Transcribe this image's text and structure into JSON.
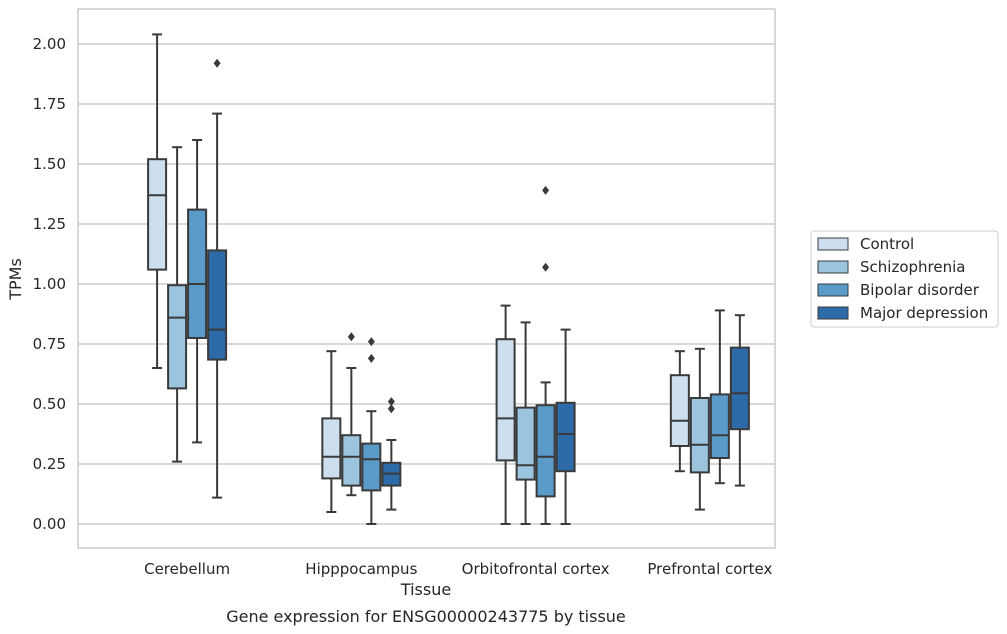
{
  "chart_data": {
    "type": "box",
    "title": "Gene expression for ENSG00000243775 by tissue",
    "xlabel": "Tissue",
    "ylabel": "TPMs",
    "ylim": [
      -0.1,
      2.15
    ],
    "yticks": [
      "0.00",
      "0.25",
      "0.50",
      "0.75",
      "1.00",
      "1.25",
      "1.50",
      "1.75",
      "2.00"
    ],
    "grid": true,
    "legend_position": "right",
    "categories": [
      "Cerebellum",
      "Hipppocampus",
      "Orbitofrontal cortex",
      "Prefrontal cortex"
    ],
    "series": [
      {
        "name": "Control",
        "color": "#cddfef",
        "boxes": [
          {
            "whislo": 0.65,
            "q1": 1.06,
            "med": 1.37,
            "q3": 1.52,
            "whishi": 2.04,
            "fliers": []
          },
          {
            "whislo": 0.05,
            "q1": 0.19,
            "med": 0.28,
            "q3": 0.44,
            "whishi": 0.72,
            "fliers": []
          },
          {
            "whislo": 0.0,
            "q1": 0.265,
            "med": 0.44,
            "q3": 0.77,
            "whishi": 0.91,
            "fliers": []
          },
          {
            "whislo": 0.22,
            "q1": 0.325,
            "med": 0.43,
            "q3": 0.62,
            "whishi": 0.72,
            "fliers": []
          }
        ]
      },
      {
        "name": "Schizophrenia",
        "color": "#9bc4df",
        "boxes": [
          {
            "whislo": 0.26,
            "q1": 0.565,
            "med": 0.86,
            "q3": 0.995,
            "whishi": 1.57,
            "fliers": []
          },
          {
            "whislo": 0.12,
            "q1": 0.16,
            "med": 0.28,
            "q3": 0.37,
            "whishi": 0.65,
            "fliers": [
              0.78
            ]
          },
          {
            "whislo": 0.0,
            "q1": 0.185,
            "med": 0.245,
            "q3": 0.485,
            "whishi": 0.84,
            "fliers": []
          },
          {
            "whislo": 0.06,
            "q1": 0.215,
            "med": 0.33,
            "q3": 0.525,
            "whishi": 0.73,
            "fliers": []
          }
        ]
      },
      {
        "name": "Bipolar disorder",
        "color": "#5b9bc9",
        "boxes": [
          {
            "whislo": 0.34,
            "q1": 0.775,
            "med": 1.0,
            "q3": 1.31,
            "whishi": 1.6,
            "fliers": []
          },
          {
            "whislo": 0.0,
            "q1": 0.14,
            "med": 0.27,
            "q3": 0.335,
            "whishi": 0.47,
            "fliers": [
              0.69,
              0.76
            ]
          },
          {
            "whislo": 0.0,
            "q1": 0.115,
            "med": 0.28,
            "q3": 0.495,
            "whishi": 0.59,
            "fliers": [
              1.07,
              1.39
            ]
          },
          {
            "whislo": 0.17,
            "q1": 0.275,
            "med": 0.37,
            "q3": 0.54,
            "whishi": 0.89,
            "fliers": []
          }
        ]
      },
      {
        "name": "Major depression",
        "color": "#2c6aa8",
        "boxes": [
          {
            "whislo": 0.11,
            "q1": 0.685,
            "med": 0.81,
            "q3": 1.14,
            "whishi": 1.71,
            "fliers": [
              1.92
            ]
          },
          {
            "whislo": 0.06,
            "q1": 0.16,
            "med": 0.21,
            "q3": 0.255,
            "whishi": 0.35,
            "fliers": [
              0.48,
              0.51
            ]
          },
          {
            "whislo": 0.0,
            "q1": 0.22,
            "med": 0.375,
            "q3": 0.505,
            "whishi": 0.81,
            "fliers": []
          },
          {
            "whislo": 0.16,
            "q1": 0.395,
            "med": 0.545,
            "q3": 0.735,
            "whishi": 0.87,
            "fliers": []
          }
        ]
      }
    ]
  }
}
